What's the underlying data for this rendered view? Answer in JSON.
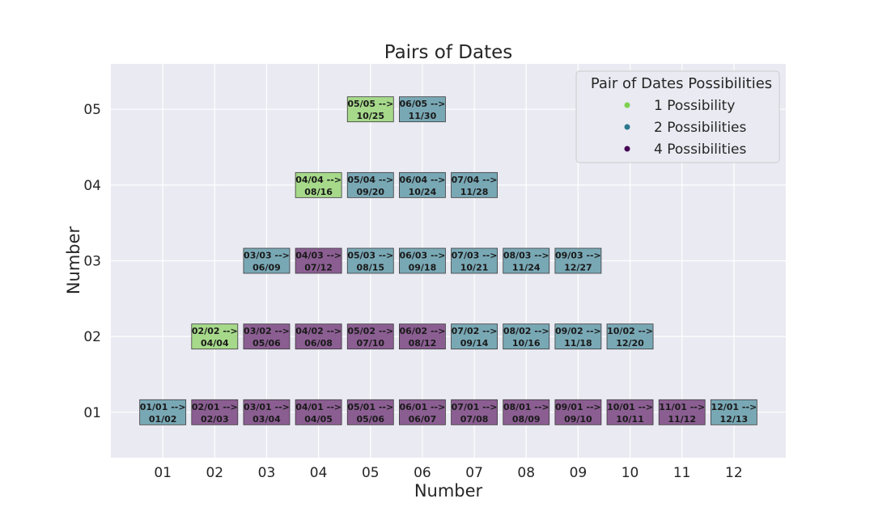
{
  "chart_data": {
    "type": "scatter",
    "title": "Pairs of Dates",
    "xlabel": "Number",
    "ylabel": "Number",
    "x_ticks": [
      "01",
      "02",
      "03",
      "04",
      "05",
      "06",
      "07",
      "08",
      "09",
      "10",
      "11",
      "12"
    ],
    "y_ticks": [
      "01",
      "02",
      "03",
      "04",
      "05"
    ],
    "xlim": [
      0,
      13
    ],
    "ylim": [
      0.4,
      5.6
    ],
    "grid": true,
    "legend": {
      "title": "Pair of Dates Possibilities",
      "placement": "top-right",
      "entries": [
        {
          "label": "1 Possibility",
          "color": "#7ad151"
        },
        {
          "label": "2 Possibilities",
          "color": "#2a788e"
        },
        {
          "label": "4 Possibilities",
          "color": "#440154"
        }
      ]
    },
    "box_colors": {
      "1": "#a6d98a",
      "2": "#79a8b5",
      "4": "#8b5e92"
    },
    "points": [
      {
        "x": 1,
        "y": 1,
        "line1": "01/01 -->",
        "line2": "01/02",
        "possibilities": 2
      },
      {
        "x": 2,
        "y": 1,
        "line1": "02/01 -->",
        "line2": "02/03",
        "possibilities": 4
      },
      {
        "x": 3,
        "y": 1,
        "line1": "03/01 -->",
        "line2": "03/04",
        "possibilities": 4
      },
      {
        "x": 4,
        "y": 1,
        "line1": "04/01 -->",
        "line2": "04/05",
        "possibilities": 4
      },
      {
        "x": 5,
        "y": 1,
        "line1": "05/01 -->",
        "line2": "05/06",
        "possibilities": 4
      },
      {
        "x": 6,
        "y": 1,
        "line1": "06/01 -->",
        "line2": "06/07",
        "possibilities": 4
      },
      {
        "x": 7,
        "y": 1,
        "line1": "07/01 -->",
        "line2": "07/08",
        "possibilities": 4
      },
      {
        "x": 8,
        "y": 1,
        "line1": "08/01 -->",
        "line2": "08/09",
        "possibilities": 4
      },
      {
        "x": 9,
        "y": 1,
        "line1": "09/01 -->",
        "line2": "09/10",
        "possibilities": 4
      },
      {
        "x": 10,
        "y": 1,
        "line1": "10/01 -->",
        "line2": "10/11",
        "possibilities": 4
      },
      {
        "x": 11,
        "y": 1,
        "line1": "11/01 -->",
        "line2": "11/12",
        "possibilities": 4
      },
      {
        "x": 12,
        "y": 1,
        "line1": "12/01 -->",
        "line2": "12/13",
        "possibilities": 2
      },
      {
        "x": 2,
        "y": 2,
        "line1": "02/02 -->",
        "line2": "04/04",
        "possibilities": 1
      },
      {
        "x": 3,
        "y": 2,
        "line1": "03/02 -->",
        "line2": "05/06",
        "possibilities": 4
      },
      {
        "x": 4,
        "y": 2,
        "line1": "04/02 -->",
        "line2": "06/08",
        "possibilities": 4
      },
      {
        "x": 5,
        "y": 2,
        "line1": "05/02 -->",
        "line2": "07/10",
        "possibilities": 4
      },
      {
        "x": 6,
        "y": 2,
        "line1": "06/02 -->",
        "line2": "08/12",
        "possibilities": 4
      },
      {
        "x": 7,
        "y": 2,
        "line1": "07/02 -->",
        "line2": "09/14",
        "possibilities": 2
      },
      {
        "x": 8,
        "y": 2,
        "line1": "08/02 -->",
        "line2": "10/16",
        "possibilities": 2
      },
      {
        "x": 9,
        "y": 2,
        "line1": "09/02 -->",
        "line2": "11/18",
        "possibilities": 2
      },
      {
        "x": 10,
        "y": 2,
        "line1": "10/02 -->",
        "line2": "12/20",
        "possibilities": 2
      },
      {
        "x": 3,
        "y": 3,
        "line1": "03/03 -->",
        "line2": "06/09",
        "possibilities": 2
      },
      {
        "x": 4,
        "y": 3,
        "line1": "04/03 -->",
        "line2": "07/12",
        "possibilities": 4
      },
      {
        "x": 5,
        "y": 3,
        "line1": "05/03 -->",
        "line2": "08/15",
        "possibilities": 2
      },
      {
        "x": 6,
        "y": 3,
        "line1": "06/03 -->",
        "line2": "09/18",
        "possibilities": 2
      },
      {
        "x": 7,
        "y": 3,
        "line1": "07/03 -->",
        "line2": "10/21",
        "possibilities": 2
      },
      {
        "x": 8,
        "y": 3,
        "line1": "08/03 -->",
        "line2": "11/24",
        "possibilities": 2
      },
      {
        "x": 9,
        "y": 3,
        "line1": "09/03 -->",
        "line2": "12/27",
        "possibilities": 2
      },
      {
        "x": 4,
        "y": 4,
        "line1": "04/04 -->",
        "line2": "08/16",
        "possibilities": 1
      },
      {
        "x": 5,
        "y": 4,
        "line1": "05/04 -->",
        "line2": "09/20",
        "possibilities": 2
      },
      {
        "x": 6,
        "y": 4,
        "line1": "06/04 -->",
        "line2": "10/24",
        "possibilities": 2
      },
      {
        "x": 7,
        "y": 4,
        "line1": "07/04 -->",
        "line2": "11/28",
        "possibilities": 2
      },
      {
        "x": 5,
        "y": 5,
        "line1": "05/05 -->",
        "line2": "10/25",
        "possibilities": 1
      },
      {
        "x": 6,
        "y": 5,
        "line1": "06/05 -->",
        "line2": "11/30",
        "possibilities": 2
      }
    ]
  }
}
